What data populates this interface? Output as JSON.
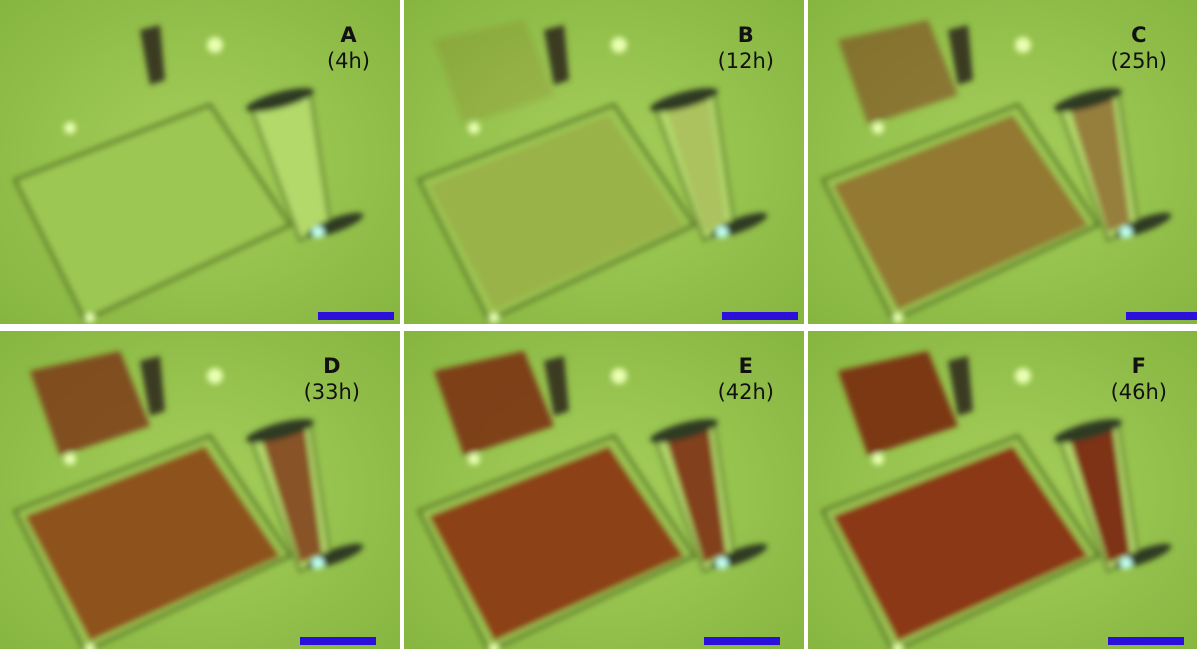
{
  "panels": [
    {
      "label": "A",
      "time": "(4h)"
    },
    {
      "label": "B",
      "time": "(12h)"
    },
    {
      "label": "C",
      "time": "(25h)"
    },
    {
      "label": "D",
      "time": "(33h)"
    },
    {
      "label": "E",
      "time": "(42h)"
    },
    {
      "label": "F",
      "time": "(46h)"
    }
  ]
}
